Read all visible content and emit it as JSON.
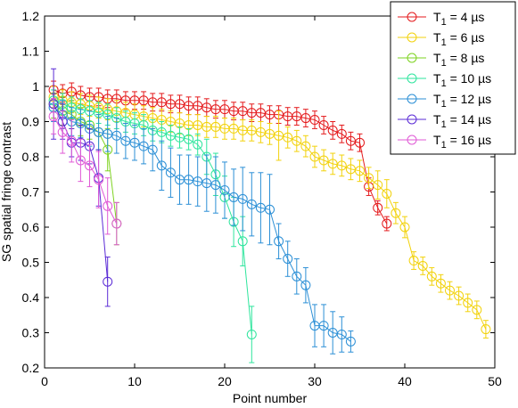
{
  "chart_data": {
    "type": "line",
    "title": "",
    "xlabel": "Point number",
    "ylabel": "SG spatial fringe contrast",
    "xlim": [
      0,
      50
    ],
    "ylim": [
      0.2,
      1.2
    ],
    "xticks": [
      "0",
      "10",
      "20",
      "30",
      "40",
      "50"
    ],
    "yticks": [
      "0.2",
      "0.3",
      "0.4",
      "0.5",
      "0.6",
      "0.7",
      "0.8",
      "0.9",
      "1",
      "1.1",
      "1.2"
    ],
    "grid": false,
    "legend_position": "top-right",
    "series": [
      {
        "name_prefix": "T",
        "name_sub": "1",
        "name_suffix": " = 4 µs",
        "color": "#e41a1c",
        "x": [
          1,
          2,
          3,
          4,
          5,
          6,
          7,
          8,
          9,
          10,
          11,
          12,
          13,
          14,
          15,
          16,
          17,
          18,
          19,
          20,
          21,
          22,
          23,
          24,
          25,
          26,
          27,
          28,
          29,
          30,
          31,
          32,
          33,
          34,
          35,
          36,
          37,
          38
        ],
        "y": [
          0.99,
          0.98,
          0.985,
          0.975,
          0.97,
          0.97,
          0.965,
          0.965,
          0.96,
          0.96,
          0.96,
          0.955,
          0.955,
          0.95,
          0.95,
          0.945,
          0.945,
          0.94,
          0.935,
          0.935,
          0.93,
          0.93,
          0.925,
          0.925,
          0.92,
          0.92,
          0.915,
          0.915,
          0.91,
          0.905,
          0.89,
          0.875,
          0.865,
          0.845,
          0.84,
          0.715,
          0.655,
          0.61
        ],
        "err": [
          0.025,
          0.025,
          0.025,
          0.025,
          0.025,
          0.025,
          0.025,
          0.025,
          0.025,
          0.025,
          0.025,
          0.025,
          0.025,
          0.025,
          0.025,
          0.025,
          0.025,
          0.025,
          0.025,
          0.025,
          0.025,
          0.025,
          0.025,
          0.025,
          0.025,
          0.025,
          0.025,
          0.025,
          0.025,
          0.025,
          0.025,
          0.025,
          0.025,
          0.025,
          0.025,
          0.025,
          0.02,
          0.02
        ]
      },
      {
        "name_prefix": "T",
        "name_sub": "1",
        "name_suffix": " = 6 µs",
        "color": "#f2d20c",
        "x": [
          1,
          2,
          3,
          4,
          5,
          6,
          7,
          8,
          9,
          10,
          11,
          12,
          13,
          14,
          15,
          16,
          17,
          18,
          19,
          20,
          21,
          22,
          23,
          24,
          25,
          26,
          27,
          28,
          29,
          30,
          31,
          32,
          33,
          34,
          35,
          36,
          37,
          38,
          39,
          40,
          41,
          42,
          43,
          44,
          45,
          46,
          47,
          48,
          49
        ],
        "y": [
          0.97,
          0.96,
          0.955,
          0.95,
          0.945,
          0.94,
          0.935,
          0.93,
          0.925,
          0.92,
          0.915,
          0.91,
          0.905,
          0.9,
          0.895,
          0.89,
          0.89,
          0.885,
          0.885,
          0.88,
          0.88,
          0.875,
          0.875,
          0.87,
          0.865,
          0.86,
          0.855,
          0.845,
          0.83,
          0.8,
          0.79,
          0.78,
          0.775,
          0.765,
          0.76,
          0.74,
          0.72,
          0.695,
          0.64,
          0.6,
          0.505,
          0.49,
          0.46,
          0.44,
          0.42,
          0.405,
          0.385,
          0.365,
          0.31
        ],
        "err": [
          0.03,
          0.03,
          0.03,
          0.03,
          0.03,
          0.03,
          0.03,
          0.03,
          0.03,
          0.03,
          0.03,
          0.03,
          0.03,
          0.03,
          0.03,
          0.03,
          0.03,
          0.03,
          0.03,
          0.03,
          0.03,
          0.03,
          0.03,
          0.03,
          0.03,
          0.07,
          0.03,
          0.03,
          0.03,
          0.03,
          0.03,
          0.03,
          0.03,
          0.03,
          0.03,
          0.03,
          0.04,
          0.04,
          0.03,
          0.03,
          0.025,
          0.025,
          0.025,
          0.025,
          0.025,
          0.025,
          0.025,
          0.025,
          0.025
        ]
      },
      {
        "name_prefix": "T",
        "name_sub": "1",
        "name_suffix": " = 8 µs",
        "color": "#7ed321",
        "x": [
          1,
          2,
          3,
          4,
          5,
          6,
          7,
          8
        ],
        "y": [
          0.95,
          0.93,
          0.92,
          0.9,
          0.89,
          0.87,
          0.82,
          0.61
        ],
        "err": [
          0.04,
          0.04,
          0.04,
          0.04,
          0.04,
          0.05,
          0.06,
          0.06
        ]
      },
      {
        "name_prefix": "T",
        "name_sub": "1",
        "name_suffix": " = 10 µs",
        "color": "#2ee59d",
        "x": [
          1,
          2,
          3,
          4,
          5,
          6,
          7,
          8,
          9,
          10,
          11,
          12,
          13,
          14,
          15,
          16,
          17,
          18,
          19,
          20,
          21,
          22,
          23
        ],
        "y": [
          0.96,
          0.95,
          0.94,
          0.935,
          0.93,
          0.925,
          0.92,
          0.91,
          0.9,
          0.895,
          0.89,
          0.875,
          0.87,
          0.86,
          0.855,
          0.85,
          0.835,
          0.8,
          0.75,
          0.685,
          0.615,
          0.56,
          0.295
        ],
        "err": [
          0.03,
          0.03,
          0.03,
          0.03,
          0.03,
          0.03,
          0.03,
          0.03,
          0.03,
          0.03,
          0.03,
          0.03,
          0.03,
          0.03,
          0.03,
          0.03,
          0.03,
          0.05,
          0.06,
          0.06,
          0.07,
          0.07,
          0.08
        ]
      },
      {
        "name_prefix": "T",
        "name_sub": "1",
        "name_suffix": " = 12 µs",
        "color": "#2b8fd6",
        "x": [
          1,
          2,
          3,
          4,
          5,
          6,
          7,
          8,
          9,
          10,
          11,
          12,
          13,
          14,
          15,
          16,
          17,
          18,
          19,
          20,
          21,
          22,
          23,
          24,
          25,
          26,
          27,
          28,
          29,
          30,
          31,
          32,
          33,
          34
        ],
        "y": [
          0.94,
          0.92,
          0.9,
          0.895,
          0.88,
          0.87,
          0.865,
          0.86,
          0.845,
          0.84,
          0.83,
          0.82,
          0.775,
          0.755,
          0.735,
          0.735,
          0.73,
          0.725,
          0.72,
          0.705,
          0.685,
          0.68,
          0.665,
          0.655,
          0.65,
          0.56,
          0.51,
          0.46,
          0.435,
          0.32,
          0.32,
          0.3,
          0.295,
          0.275
        ],
        "err": [
          0.04,
          0.04,
          0.04,
          0.04,
          0.05,
          0.05,
          0.05,
          0.05,
          0.05,
          0.05,
          0.05,
          0.06,
          0.07,
          0.07,
          0.07,
          0.07,
          0.07,
          0.08,
          0.08,
          0.08,
          0.08,
          0.09,
          0.09,
          0.1,
          0.1,
          0.05,
          0.05,
          0.05,
          0.05,
          0.06,
          0.06,
          0.06,
          0.05,
          0.03
        ]
      },
      {
        "name_prefix": "T",
        "name_sub": "1",
        "name_suffix": " = 14 µs",
        "color": "#5b2bd6",
        "x": [
          1,
          2,
          3,
          4,
          5,
          6,
          7
        ],
        "y": [
          0.95,
          0.9,
          0.84,
          0.84,
          0.83,
          0.74,
          0.445
        ],
        "err": [
          0.1,
          0.05,
          0.04,
          0.05,
          0.05,
          0.08,
          0.07
        ]
      },
      {
        "name_prefix": "T",
        "name_sub": "1",
        "name_suffix": " = 16 µs",
        "color": "#e05ad6",
        "x": [
          1,
          2,
          3,
          4,
          5,
          6,
          7,
          8
        ],
        "y": [
          0.915,
          0.87,
          0.845,
          0.79,
          0.775,
          0.735,
          0.66,
          0.61
        ],
        "err": [
          0.05,
          0.06,
          0.06,
          0.06,
          0.06,
          0.08,
          0.08,
          0.06
        ]
      }
    ]
  }
}
